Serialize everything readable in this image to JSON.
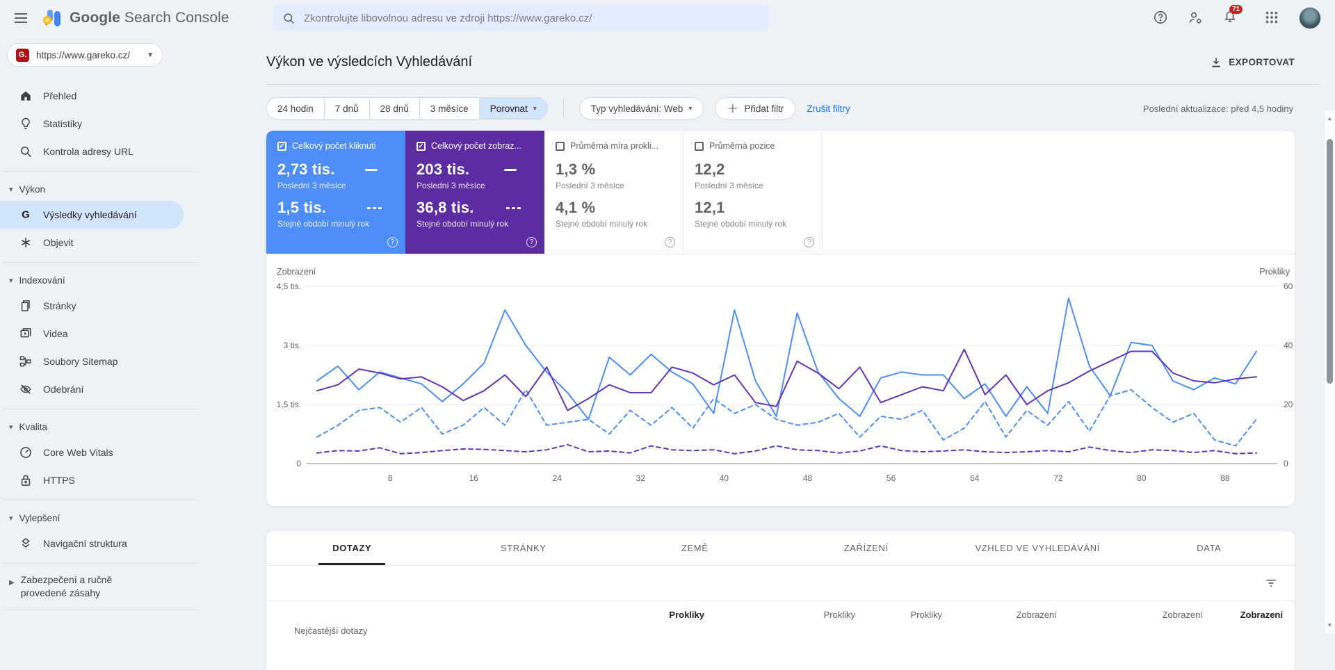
{
  "topbar": {
    "logo_primary": "Google",
    "logo_secondary": "Search Console",
    "search_placeholder": "Zkontrolujte libovolnou adresu ve zdroji https://www.gareko.cz/",
    "notification_count": "71"
  },
  "property_selector": {
    "url": "https://www.gareko.cz/",
    "favicon_letter": "G."
  },
  "sidebar": {
    "top_items": [
      {
        "label": "Přehled"
      },
      {
        "label": "Statistiky"
      },
      {
        "label": "Kontrola adresy URL"
      }
    ],
    "groups": [
      {
        "title": "Výkon",
        "items": [
          {
            "label": "Výsledky vyhledávání",
            "selected": true
          },
          {
            "label": "Objevit"
          }
        ]
      },
      {
        "title": "Indexování",
        "items": [
          {
            "label": "Stránky"
          },
          {
            "label": "Videa"
          },
          {
            "label": "Soubory Sitemap"
          },
          {
            "label": "Odebrání"
          }
        ]
      },
      {
        "title": "Kvalita",
        "items": [
          {
            "label": "Core Web Vitals"
          },
          {
            "label": "HTTPS"
          }
        ]
      },
      {
        "title": "Vylepšení",
        "items": [
          {
            "label": "Navigační struktura"
          }
        ]
      }
    ],
    "collapsed_item": {
      "label": "Zabezpečení a ručně provedené zásahy"
    }
  },
  "page": {
    "title": "Výkon ve výsledcích Vyhledávání",
    "export_label": "EXPORTOVAT",
    "last_update": "Poslední aktualizace: před 4,5 hodiny"
  },
  "filters": {
    "date_ranges": [
      "24 hodin",
      "7 dnů",
      "28 dnů",
      "3 měsíce"
    ],
    "compare_label": "Porovnat",
    "search_type_label": "Typ vyhledávání: Web",
    "add_filter_label": "Přidat filtr",
    "reset_label": "Zrušit filtry"
  },
  "metrics": [
    {
      "label": "Celkový počet kliknutí",
      "checked": true,
      "color": "#4e8df6",
      "value": "2,73 tis.",
      "period": "Poslední 3 měsíce",
      "prev_value": "1,5 tis.",
      "prev_period": "Stejné období minulý rok"
    },
    {
      "label": "Celkový počet zobraz...",
      "checked": true,
      "color": "#5b2da0",
      "value": "203 tis.",
      "period": "Poslední 3 měsíce",
      "prev_value": "36,8 tis.",
      "prev_period": "Stejné období minulý rok"
    },
    {
      "label": "Průměrná míra prokli...",
      "checked": false,
      "color": "#ffffff",
      "value": "1,3 %",
      "period": "Poslední 3 měsíce",
      "prev_value": "4,1 %",
      "prev_period": "Stejné období minulý rok"
    },
    {
      "label": "Průměrná pozice",
      "checked": false,
      "color": "#ffffff",
      "value": "12,2",
      "period": "Poslední 3 měsíce",
      "prev_value": "12,1",
      "prev_period": "Stejné období minulý rok"
    }
  ],
  "chart_data": {
    "type": "line",
    "grid": true,
    "axes": {
      "left": {
        "label": "Zobrazení",
        "max": 4500,
        "ticks": [
          0,
          1500,
          3000,
          4500
        ],
        "tick_labels": [
          "0",
          "1,5 tis.",
          "3 tis.",
          "4,5 tis."
        ]
      },
      "right": {
        "label": "Prokliky",
        "max": 60,
        "ticks": [
          0,
          20,
          40,
          60
        ],
        "tick_labels": [
          "0",
          "20",
          "40",
          "60"
        ]
      }
    },
    "x_ticks": [
      8,
      16,
      24,
      32,
      40,
      48,
      56,
      64,
      72,
      80,
      88
    ],
    "x": [
      1,
      3,
      5,
      7,
      9,
      11,
      13,
      15,
      17,
      19,
      21,
      23,
      25,
      27,
      29,
      31,
      33,
      35,
      37,
      39,
      41,
      43,
      45,
      47,
      49,
      51,
      53,
      55,
      57,
      59,
      61,
      63,
      65,
      67,
      69,
      71,
      73,
      75,
      77,
      79,
      81,
      83,
      85,
      87,
      89,
      91
    ],
    "series": [
      {
        "name": "Prokliky – poslední 3 měsíce",
        "axis": "right",
        "style": "solid",
        "color": "#4e8df6",
        "values": [
          28,
          33,
          25,
          31,
          29,
          27,
          21,
          27,
          34,
          52,
          40,
          31,
          24,
          15,
          36,
          30,
          37,
          31,
          27,
          17,
          52,
          28,
          16,
          51,
          31,
          22,
          16,
          29,
          31,
          30,
          30,
          22,
          27,
          16,
          26,
          17,
          56,
          33,
          23,
          41,
          40,
          28,
          25,
          29,
          27,
          38
        ]
      },
      {
        "name": "Prokliky – stejné období minulý rok",
        "axis": "right",
        "style": "dashed",
        "color": "#4e8df6",
        "values": [
          9,
          13,
          18,
          19,
          14,
          19,
          10,
          13,
          19,
          13,
          25,
          13,
          14,
          15,
          10,
          18,
          13,
          19,
          12,
          22,
          17,
          20,
          15,
          13,
          14,
          17,
          9,
          16,
          15,
          18,
          8,
          12,
          21,
          9,
          18,
          13,
          21,
          11,
          23,
          25,
          19,
          14,
          17,
          8,
          6,
          15
        ]
      },
      {
        "name": "Zobrazení – poslední 3 měsíce",
        "axis": "left",
        "style": "solid",
        "color": "#5e35b1",
        "values": [
          1850,
          2000,
          2400,
          2300,
          2150,
          2200,
          1950,
          1600,
          1850,
          2250,
          1700,
          2450,
          1350,
          1650,
          2000,
          1800,
          1800,
          2450,
          2300,
          2000,
          2250,
          1550,
          1450,
          2600,
          2300,
          1900,
          2450,
          1550,
          1750,
          1950,
          1850,
          2900,
          1750,
          2250,
          1500,
          1850,
          2050,
          2350,
          2600,
          2850,
          2850,
          2300,
          2100,
          2050,
          2150,
          2200
        ]
      },
      {
        "name": "Zobrazení – stejné období minulý rok",
        "axis": "left",
        "style": "dashed",
        "color": "#5e35b1",
        "values": [
          270,
          330,
          320,
          400,
          250,
          280,
          330,
          370,
          360,
          330,
          300,
          350,
          480,
          300,
          320,
          270,
          450,
          350,
          330,
          350,
          250,
          320,
          450,
          350,
          330,
          270,
          320,
          450,
          330,
          300,
          320,
          350,
          300,
          280,
          300,
          330,
          300,
          420,
          330,
          280,
          350,
          330,
          280,
          330,
          250,
          270
        ]
      }
    ]
  },
  "results_tabs": {
    "tabs": [
      "DOTAZY",
      "STRÁNKY",
      "ZEMĚ",
      "ZAŘÍZENÍ",
      "VZHLED VE VYHLEDÁVÁNÍ",
      "DATA"
    ],
    "active": "DOTAZY"
  },
  "results_table": {
    "row_header": "Nejčastější dotazy",
    "columns": [
      {
        "label": "Prokliky",
        "emphasis": true
      },
      {
        "label": "Prokliky",
        "emphasis": false
      },
      {
        "label": "Prokliky",
        "emphasis": false
      },
      {
        "label": "Zobrazení",
        "emphasis": false
      },
      {
        "label": "Zobrazení",
        "emphasis": false
      },
      {
        "label": "Zobrazení",
        "emphasis": true
      }
    ]
  },
  "colors": {
    "accent_blue": "#4e8df6",
    "accent_purple": "#5b2da0",
    "link_blue": "#1a73e8",
    "selected_nav_bg": "#d2e3fc",
    "badge_red": "#c5221f"
  }
}
